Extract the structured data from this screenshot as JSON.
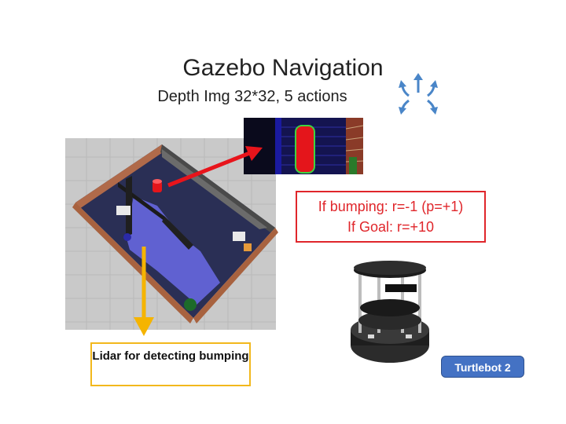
{
  "slide": {
    "title": "Gazebo Navigation",
    "subtitle": "Depth Img 32*32, 5 actions",
    "reward_lines": [
      "If bumping: r=-1 (p=+1)",
      "If Goal: r=+10"
    ],
    "lidar_label": "Lidar for detecting bumping",
    "robot_label": "Turtlebot 2"
  },
  "icons": [
    "action-arrows-icon"
  ],
  "colors": {
    "reward_border": "#e0262b",
    "lidar_border": "#f2b81c",
    "badge_fill": "#4472c4",
    "arrow_red": "#e8141b",
    "arrow_yellow": "#f5b400"
  }
}
